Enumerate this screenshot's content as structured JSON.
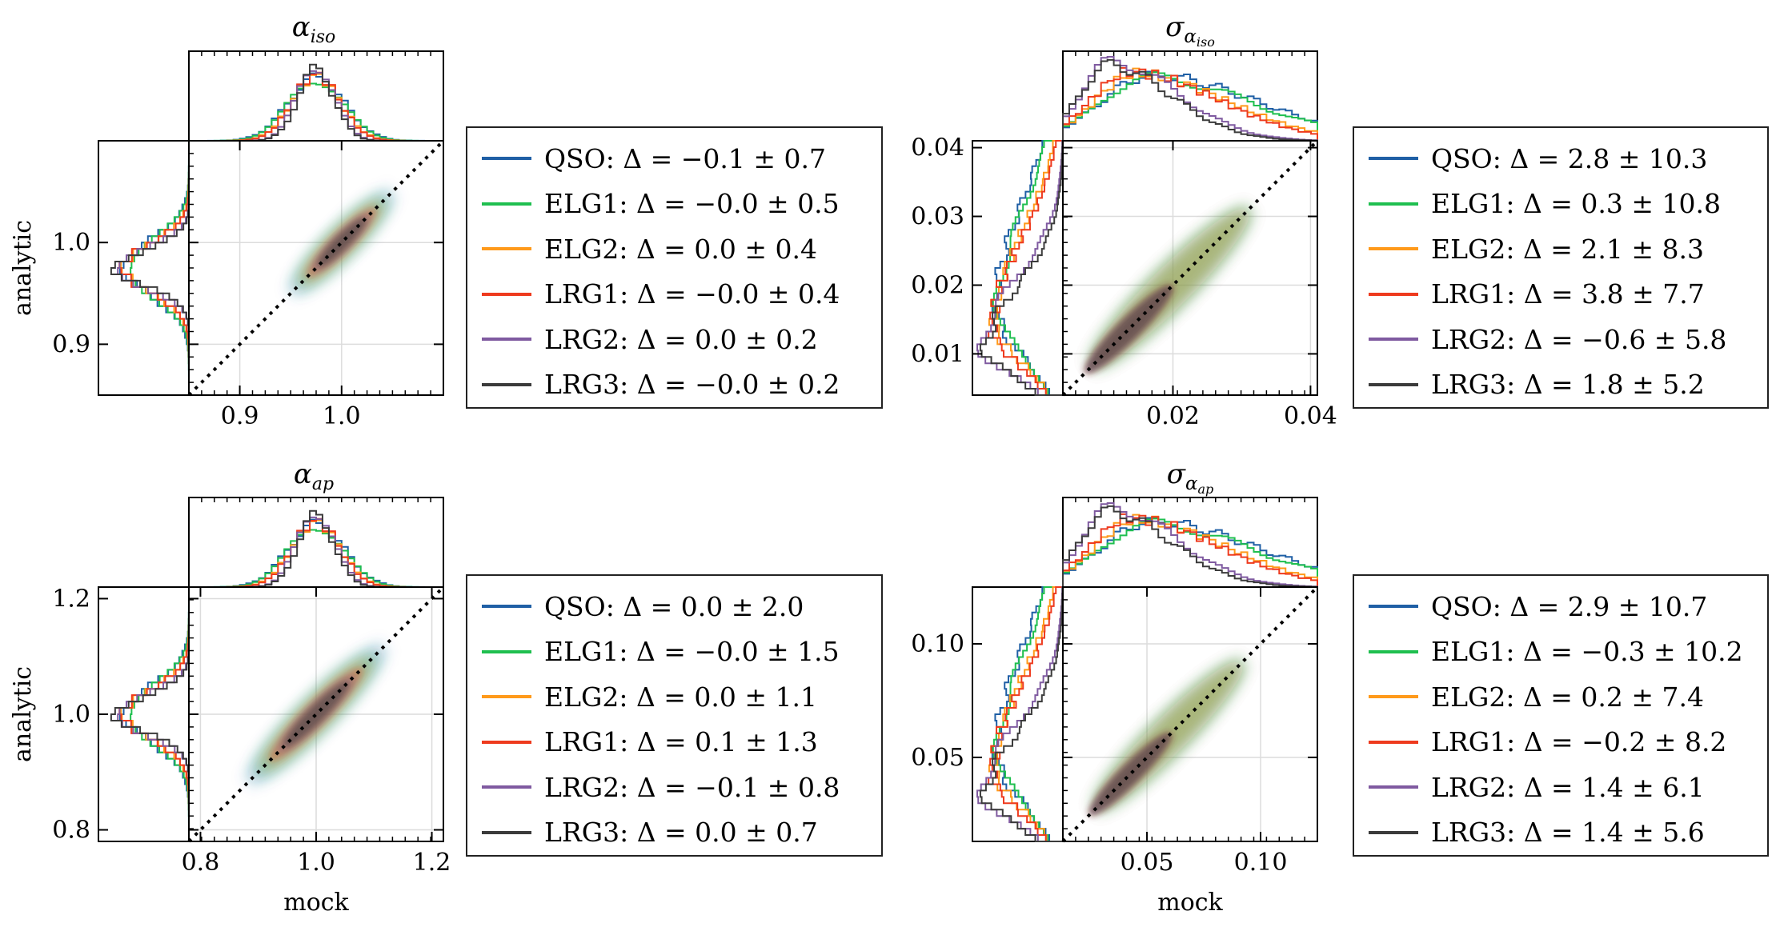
{
  "colors": {
    "QSO": "#1f5fa5",
    "ELG1": "#1fbf4f",
    "ELG2": "#ff9a1a",
    "LRG1": "#ee3a1e",
    "LRG2": "#7f5aa0",
    "LRG3": "#3b3b3b",
    "diagonal": "#000000"
  },
  "chart_data": [
    {
      "type": "scatter",
      "title": "α_iso",
      "xlabel": "",
      "ylabel": "analytic",
      "xlim": [
        0.85,
        1.1
      ],
      "ylim": [
        0.85,
        1.1
      ],
      "xticks": [
        "0.9",
        "1.0"
      ],
      "xtick_values": [
        0.9,
        1.0
      ],
      "yticks": [
        "0.9",
        "1.0"
      ],
      "ytick_values": [
        0.9,
        1.0
      ],
      "center": [
        1.0,
        1.0
      ],
      "spread_along": 0.055,
      "spread_across": 0.01,
      "legend_title": "",
      "legend": [
        {
          "tracer": "QSO",
          "label": "QSO:  Δ = −0.1 ± 0.7"
        },
        {
          "tracer": "ELG1",
          "label": "ELG1:  Δ = −0.0 ± 0.5"
        },
        {
          "tracer": "ELG2",
          "label": "ELG2:  Δ = 0.0 ± 0.4"
        },
        {
          "tracer": "LRG1",
          "label": "LRG1:  Δ = −0.0 ± 0.4"
        },
        {
          "tracer": "LRG2",
          "label": "LRG2:  Δ = 0.0 ± 0.2"
        },
        {
          "tracer": "LRG3",
          "label": "LRG3:  Δ = −0.0 ± 0.2"
        }
      ]
    },
    {
      "type": "scatter",
      "title": "σ_α_iso",
      "xlabel": "",
      "ylabel": "",
      "xlim": [
        0.004,
        0.041
      ],
      "ylim": [
        0.004,
        0.041
      ],
      "xticks": [
        "0.02",
        "0.04"
      ],
      "xtick_values": [
        0.02,
        0.04
      ],
      "yticks": [
        "0.01",
        "0.02",
        "0.03",
        "0.04"
      ],
      "ytick_values": [
        0.01,
        0.02,
        0.03,
        0.04
      ],
      "center": [
        0.019,
        0.019
      ],
      "spread_along": 0.012,
      "spread_across": 0.0018,
      "legend": [
        {
          "tracer": "QSO",
          "label": "QSO:  Δ = 2.8 ± 10.3"
        },
        {
          "tracer": "ELG1",
          "label": "ELG1:  Δ = 0.3 ± 10.8"
        },
        {
          "tracer": "ELG2",
          "label": "ELG2:  Δ = 2.1 ± 8.3"
        },
        {
          "tracer": "LRG1",
          "label": "LRG1:  Δ = 3.8 ± 7.7"
        },
        {
          "tracer": "LRG2",
          "label": "LRG2:  Δ = −0.6 ± 5.8"
        },
        {
          "tracer": "LRG3",
          "label": "LRG3:  Δ = 1.8 ± 5.2"
        }
      ]
    },
    {
      "type": "scatter",
      "title": "α_ap",
      "xlabel": "mock",
      "ylabel": "analytic",
      "xlim": [
        0.78,
        1.22
      ],
      "ylim": [
        0.78,
        1.22
      ],
      "xticks": [
        "0.8",
        "1.0",
        "1.2"
      ],
      "xtick_values": [
        0.8,
        1.0,
        1.2
      ],
      "yticks": [
        "0.8",
        "1.0",
        "1.2"
      ],
      "ytick_values": [
        0.8,
        1.0,
        1.2
      ],
      "center": [
        1.0,
        1.0
      ],
      "spread_along": 0.13,
      "spread_across": 0.02,
      "legend": [
        {
          "tracer": "QSO",
          "label": "QSO:  Δ = 0.0 ± 2.0"
        },
        {
          "tracer": "ELG1",
          "label": "ELG1:  Δ = −0.0 ± 1.5"
        },
        {
          "tracer": "ELG2",
          "label": "ELG2:  Δ = 0.0 ± 1.1"
        },
        {
          "tracer": "LRG1",
          "label": "LRG1:  Δ = 0.1 ± 1.3"
        },
        {
          "tracer": "LRG2",
          "label": "LRG2:  Δ = −0.1 ± 0.8"
        },
        {
          "tracer": "LRG3",
          "label": "LRG3:  Δ = 0.0 ± 0.7"
        }
      ]
    },
    {
      "type": "scatter",
      "title": "σ_α_ap",
      "xlabel": "mock",
      "ylabel": "",
      "xlim": [
        0.013,
        0.125
      ],
      "ylim": [
        0.013,
        0.125
      ],
      "xticks": [
        "0.05",
        "0.10"
      ],
      "xtick_values": [
        0.05,
        0.1
      ],
      "yticks": [
        "0.05",
        "0.10"
      ],
      "ytick_values": [
        0.05,
        0.1
      ],
      "center": [
        0.058,
        0.058
      ],
      "spread_along": 0.034,
      "spread_across": 0.005,
      "legend": [
        {
          "tracer": "QSO",
          "label": "QSO:  Δ = 2.9 ± 10.7"
        },
        {
          "tracer": "ELG1",
          "label": "ELG1:  Δ = −0.3 ± 10.2"
        },
        {
          "tracer": "ELG2",
          "label": "ELG2:  Δ = 0.2 ± 7.4"
        },
        {
          "tracer": "LRG1",
          "label": "LRG1:  Δ = −0.2 ± 8.2"
        },
        {
          "tracer": "LRG2",
          "label": "LRG2:  Δ = 1.4 ± 6.1"
        },
        {
          "tracer": "LRG3",
          "label": "LRG3:  Δ = 1.4 ± 5.6"
        }
      ]
    }
  ]
}
